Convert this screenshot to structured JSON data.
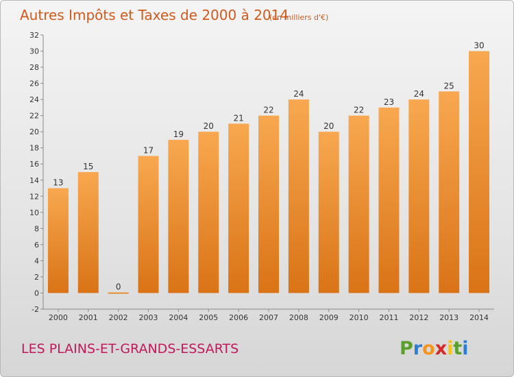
{
  "chart_data": {
    "type": "bar",
    "title": "Autres Impôts et Taxes de 2000 à 2014",
    "subtitle": "(en milliers d'€)",
    "categories": [
      "2000",
      "2001",
      "2002",
      "2003",
      "2004",
      "2005",
      "2006",
      "2007",
      "2008",
      "2009",
      "2010",
      "2011",
      "2012",
      "2013",
      "2014"
    ],
    "values": [
      13,
      15,
      0,
      17,
      19,
      20,
      21,
      22,
      24,
      20,
      22,
      23,
      24,
      25,
      30
    ],
    "xlabel": "",
    "ylabel": "",
    "ylim": [
      -2,
      32
    ],
    "yticks": [
      -2,
      0,
      2,
      4,
      6,
      8,
      10,
      12,
      14,
      16,
      18,
      20,
      22,
      24,
      26,
      28,
      30,
      32
    ],
    "grid": false,
    "bar_color": "#f39a3c"
  },
  "commune": "LES PLAINS-ET-GRANDS-ESSARTS",
  "logo": {
    "text": "Proxiti",
    "letters": [
      "P",
      "r",
      "o",
      "x",
      "i",
      "t",
      "i"
    ],
    "colors": [
      "#5aa02c",
      "#2a7fd4",
      "#f7941d",
      "#d62828",
      "#f7c21d",
      "#5aa02c",
      "#2a7fd4"
    ]
  }
}
